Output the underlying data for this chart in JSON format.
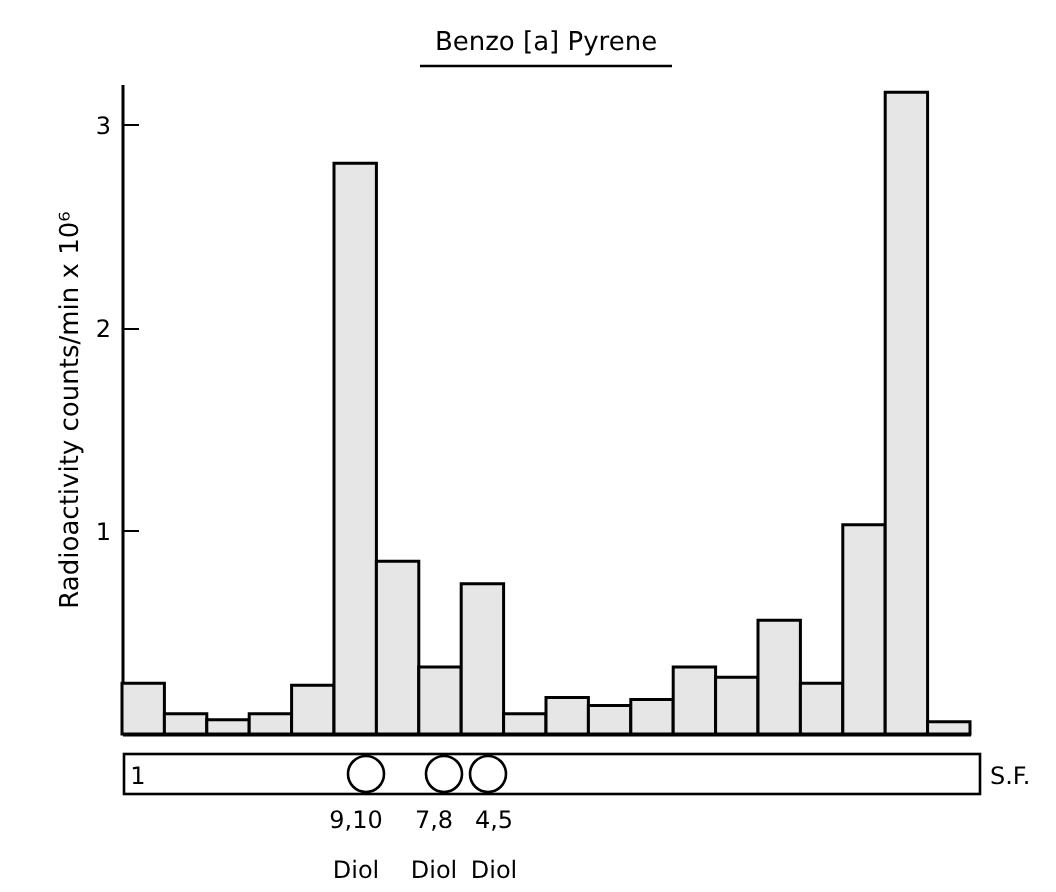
{
  "chart_data": {
    "type": "bar",
    "title": "Benzo [a] Pyrene",
    "ylabel": "Radioactivity counts/min x 10⁶",
    "categories": [
      null,
      null,
      null,
      null,
      null,
      null,
      null,
      null,
      null,
      null,
      null,
      null,
      null,
      null,
      null,
      null,
      null,
      null,
      null,
      null
    ],
    "values": [
      0.25,
      0.1,
      0.07,
      0.1,
      0.24,
      2.81,
      0.85,
      0.33,
      0.74,
      0.1,
      0.18,
      0.14,
      0.17,
      0.33,
      0.28,
      0.56,
      0.25,
      1.03,
      3.16,
      0.06
    ],
    "color": "#e6e6e6",
    "ylim": [
      0,
      3.2
    ],
    "yticks": [
      1,
      2,
      3
    ],
    "annotations": [
      "1",
      "S.F.",
      "9,10 Diol",
      "7,8 Diol",
      "4,5 Diol"
    ]
  }
}
